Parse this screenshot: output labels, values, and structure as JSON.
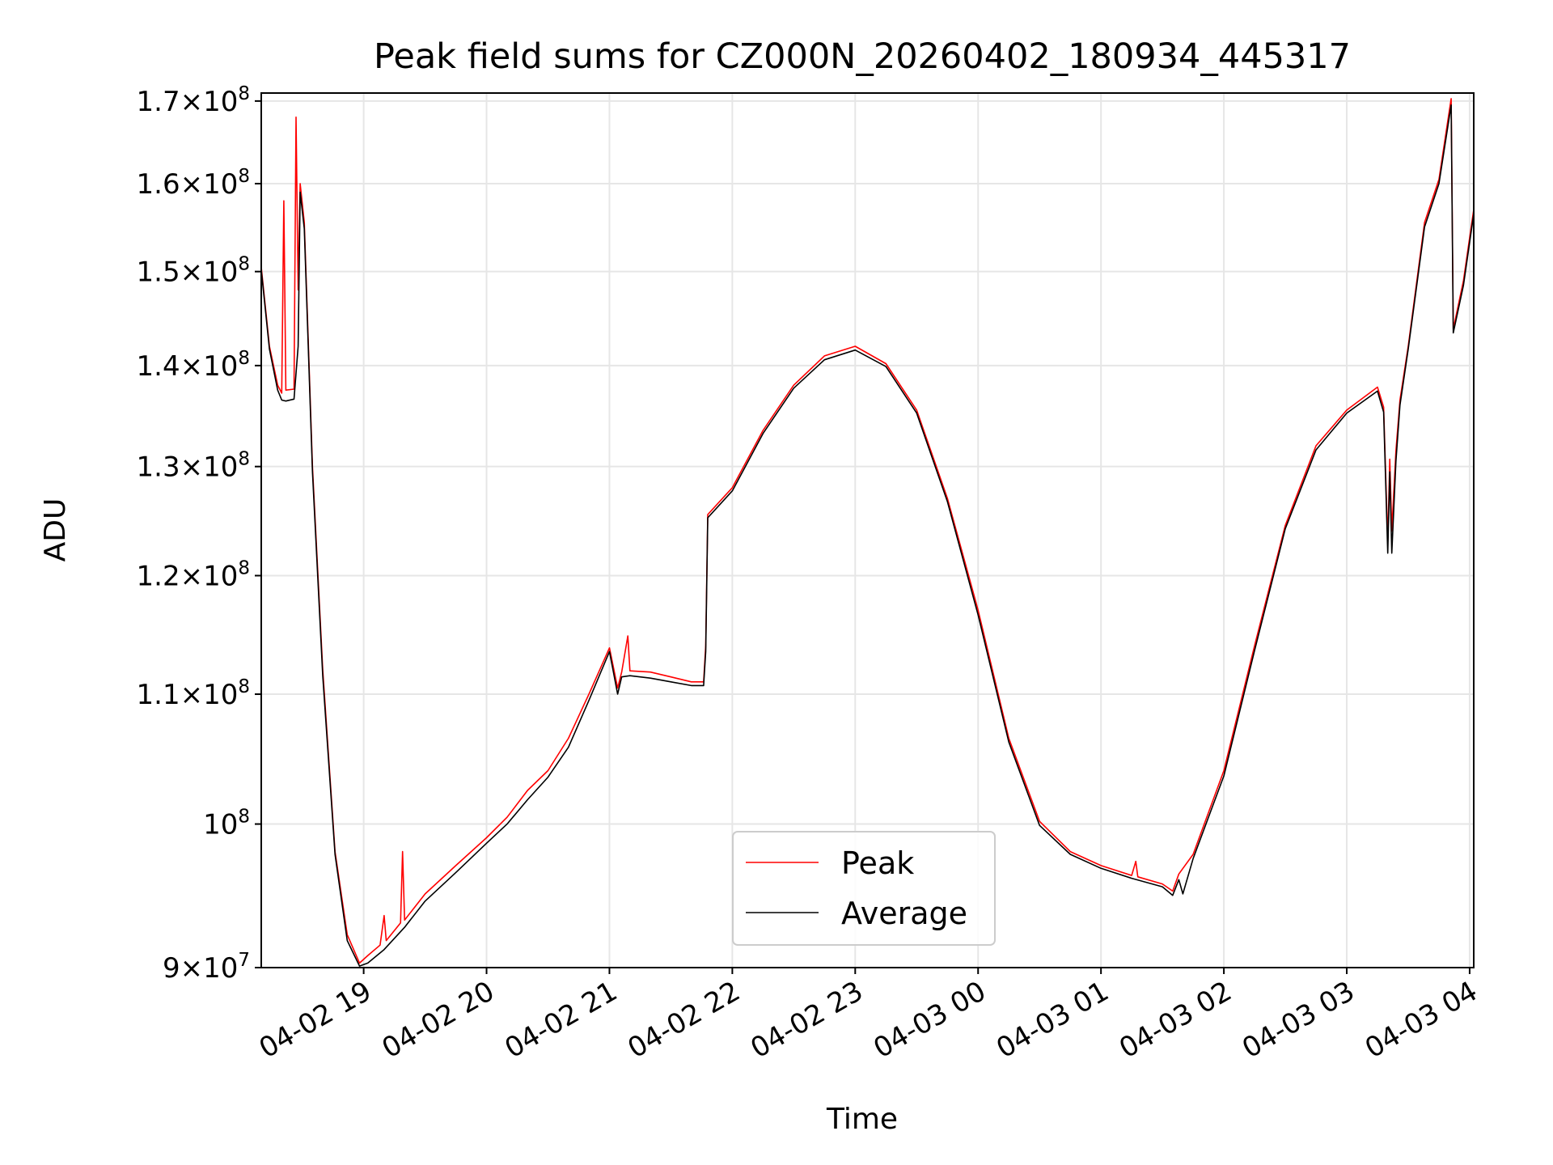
{
  "chart_data": {
    "type": "line",
    "title": "Peak field sums for CZ000N_20260402_180934_445317",
    "xlabel": "Time",
    "ylabel": "ADU",
    "yscale": "log",
    "ylim": [
      90000000,
      171000000
    ],
    "xlim": [
      "2026-04-02 18:10",
      "2026-04-03 04:02"
    ],
    "grid": true,
    "legend_position": "lower-center",
    "x_ticks": [
      {
        "t": "2026-04-02 19:00",
        "label": "04-02 19"
      },
      {
        "t": "2026-04-02 20:00",
        "label": "04-02 20"
      },
      {
        "t": "2026-04-02 21:00",
        "label": "04-02 21"
      },
      {
        "t": "2026-04-02 22:00",
        "label": "04-02 22"
      },
      {
        "t": "2026-04-02 23:00",
        "label": "04-02 23"
      },
      {
        "t": "2026-04-03 00:00",
        "label": "04-03 00"
      },
      {
        "t": "2026-04-03 01:00",
        "label": "04-03 01"
      },
      {
        "t": "2026-04-03 02:00",
        "label": "04-03 02"
      },
      {
        "t": "2026-04-03 03:00",
        "label": "04-03 03"
      },
      {
        "t": "2026-04-03 04:00",
        "label": "04-03 04"
      }
    ],
    "y_ticks": [
      {
        "v": 90000000,
        "mant": "9",
        "exp": "7",
        "sci": true
      },
      {
        "v": 100000000,
        "mant": "",
        "exp": "8",
        "sci": false
      },
      {
        "v": 110000000,
        "mant": "1.1",
        "exp": "8",
        "sci": true
      },
      {
        "v": 120000000,
        "mant": "1.2",
        "exp": "8",
        "sci": true
      },
      {
        "v": 130000000,
        "mant": "1.3",
        "exp": "8",
        "sci": true
      },
      {
        "v": 140000000,
        "mant": "1.4",
        "exp": "8",
        "sci": true
      },
      {
        "v": 150000000,
        "mant": "1.5",
        "exp": "8",
        "sci": true
      },
      {
        "v": 160000000,
        "mant": "1.6",
        "exp": "8",
        "sci": true
      },
      {
        "v": 170000000,
        "mant": "1.7",
        "exp": "8",
        "sci": true
      }
    ],
    "series": [
      {
        "name": "Peak",
        "color": "#ff0000",
        "points": [
          [
            "2026-04-02 18:10",
            150500000
          ],
          [
            "2026-04-02 18:14",
            142000000
          ],
          [
            "2026-04-02 18:18",
            138000000
          ],
          [
            "2026-04-02 18:20",
            137200000
          ],
          [
            "2026-04-02 18:21",
            158000000
          ],
          [
            "2026-04-02 18:22",
            137500000
          ],
          [
            "2026-04-02 18:26",
            137600000
          ],
          [
            "2026-04-02 18:27",
            168000000
          ],
          [
            "2026-04-02 18:28",
            148000000
          ],
          [
            "2026-04-02 18:29",
            160000000
          ],
          [
            "2026-04-02 18:31",
            155500000
          ],
          [
            "2026-04-02 18:35",
            130000000
          ],
          [
            "2026-04-02 18:40",
            112000000
          ],
          [
            "2026-04-02 18:46",
            98000000
          ],
          [
            "2026-04-02 18:52",
            92200000
          ],
          [
            "2026-04-02 18:58",
            90300000
          ],
          [
            "2026-04-02 19:02",
            90800000
          ],
          [
            "2026-04-02 19:08",
            91500000
          ],
          [
            "2026-04-02 19:10",
            93500000
          ],
          [
            "2026-04-02 19:11",
            91800000
          ],
          [
            "2026-04-02 19:18",
            93000000
          ],
          [
            "2026-04-02 19:19",
            98000000
          ],
          [
            "2026-04-02 19:20",
            93200000
          ],
          [
            "2026-04-02 19:30",
            95000000
          ],
          [
            "2026-04-02 19:45",
            97000000
          ],
          [
            "2026-04-02 20:00",
            99000000
          ],
          [
            "2026-04-02 20:10",
            100500000
          ],
          [
            "2026-04-02 20:20",
            102500000
          ],
          [
            "2026-04-02 20:30",
            104000000
          ],
          [
            "2026-04-02 20:40",
            106500000
          ],
          [
            "2026-04-02 20:50",
            110000000
          ],
          [
            "2026-04-02 21:00",
            113800000
          ],
          [
            "2026-04-02 21:04",
            110500000
          ],
          [
            "2026-04-02 21:06",
            111800000
          ],
          [
            "2026-04-02 21:09",
            114800000
          ],
          [
            "2026-04-02 21:10",
            111900000
          ],
          [
            "2026-04-02 21:20",
            111800000
          ],
          [
            "2026-04-02 21:30",
            111400000
          ],
          [
            "2026-04-02 21:40",
            111000000
          ],
          [
            "2026-04-02 21:46",
            111000000
          ],
          [
            "2026-04-02 21:47",
            114000000
          ],
          [
            "2026-04-02 21:48",
            125500000
          ],
          [
            "2026-04-02 22:00",
            128000000
          ],
          [
            "2026-04-02 22:15",
            133500000
          ],
          [
            "2026-04-02 22:30",
            138000000
          ],
          [
            "2026-04-02 22:45",
            141000000
          ],
          [
            "2026-04-02 23:00",
            142000000
          ],
          [
            "2026-04-02 23:15",
            140200000
          ],
          [
            "2026-04-02 23:30",
            135500000
          ],
          [
            "2026-04-02 23:45",
            127000000
          ],
          [
            "2026-04-03 00:00",
            117000000
          ],
          [
            "2026-04-03 00:15",
            106500000
          ],
          [
            "2026-04-03 00:30",
            100200000
          ],
          [
            "2026-04-03 00:45",
            98000000
          ],
          [
            "2026-04-03 01:00",
            97000000
          ],
          [
            "2026-04-03 01:15",
            96300000
          ],
          [
            "2026-04-03 01:17",
            97300000
          ],
          [
            "2026-04-03 01:18",
            96200000
          ],
          [
            "2026-04-03 01:30",
            95700000
          ],
          [
            "2026-04-03 01:35",
            95200000
          ],
          [
            "2026-04-03 01:38",
            96400000
          ],
          [
            "2026-04-03 01:45",
            97800000
          ],
          [
            "2026-04-03 02:00",
            104000000
          ],
          [
            "2026-04-03 02:15",
            114000000
          ],
          [
            "2026-04-03 02:30",
            124500000
          ],
          [
            "2026-04-03 02:45",
            132000000
          ],
          [
            "2026-04-03 03:00",
            135500000
          ],
          [
            "2026-04-03 03:15",
            137800000
          ],
          [
            "2026-04-03 03:18",
            135800000
          ],
          [
            "2026-04-03 03:20",
            123000000
          ],
          [
            "2026-04-03 03:21",
            130700000
          ],
          [
            "2026-04-03 03:22",
            124000000
          ],
          [
            "2026-04-03 03:24",
            131500000
          ],
          [
            "2026-04-03 03:26",
            136500000
          ],
          [
            "2026-04-03 03:30",
            142000000
          ],
          [
            "2026-04-03 03:38",
            155500000
          ],
          [
            "2026-04-03 03:45",
            160500000
          ],
          [
            "2026-04-03 03:51",
            170300000
          ],
          [
            "2026-04-03 03:52",
            143800000
          ],
          [
            "2026-04-03 03:57",
            149000000
          ],
          [
            "2026-04-03 04:02",
            157000000
          ]
        ]
      },
      {
        "name": "Average",
        "color": "#000000",
        "points": [
          [
            "2026-04-02 18:10",
            150200000
          ],
          [
            "2026-04-02 18:14",
            141700000
          ],
          [
            "2026-04-02 18:18",
            137500000
          ],
          [
            "2026-04-02 18:20",
            136500000
          ],
          [
            "2026-04-02 18:22",
            136400000
          ],
          [
            "2026-04-02 18:26",
            136600000
          ],
          [
            "2026-04-02 18:28",
            142000000
          ],
          [
            "2026-04-02 18:29",
            159000000
          ],
          [
            "2026-04-02 18:31",
            154800000
          ],
          [
            "2026-04-02 18:35",
            129500000
          ],
          [
            "2026-04-02 18:40",
            111500000
          ],
          [
            "2026-04-02 18:46",
            97800000
          ],
          [
            "2026-04-02 18:52",
            91800000
          ],
          [
            "2026-04-02 18:58",
            90100000
          ],
          [
            "2026-04-02 19:02",
            90300000
          ],
          [
            "2026-04-02 19:10",
            91200000
          ],
          [
            "2026-04-02 19:20",
            92700000
          ],
          [
            "2026-04-02 19:30",
            94500000
          ],
          [
            "2026-04-02 19:45",
            96500000
          ],
          [
            "2026-04-02 20:00",
            98600000
          ],
          [
            "2026-04-02 20:10",
            100000000
          ],
          [
            "2026-04-02 20:20",
            101800000
          ],
          [
            "2026-04-02 20:30",
            103500000
          ],
          [
            "2026-04-02 20:40",
            105800000
          ],
          [
            "2026-04-02 20:50",
            109500000
          ],
          [
            "2026-04-02 21:00",
            113500000
          ],
          [
            "2026-04-02 21:04",
            110000000
          ],
          [
            "2026-04-02 21:06",
            111400000
          ],
          [
            "2026-04-02 21:10",
            111500000
          ],
          [
            "2026-04-02 21:20",
            111300000
          ],
          [
            "2026-04-02 21:30",
            111000000
          ],
          [
            "2026-04-02 21:40",
            110700000
          ],
          [
            "2026-04-02 21:46",
            110700000
          ],
          [
            "2026-04-02 21:47",
            113500000
          ],
          [
            "2026-04-02 21:48",
            125200000
          ],
          [
            "2026-04-02 22:00",
            127700000
          ],
          [
            "2026-04-02 22:15",
            133200000
          ],
          [
            "2026-04-02 22:30",
            137700000
          ],
          [
            "2026-04-02 22:45",
            140600000
          ],
          [
            "2026-04-02 23:00",
            141600000
          ],
          [
            "2026-04-02 23:15",
            139900000
          ],
          [
            "2026-04-02 23:30",
            135200000
          ],
          [
            "2026-04-02 23:45",
            126700000
          ],
          [
            "2026-04-03 00:00",
            116600000
          ],
          [
            "2026-04-03 00:15",
            106200000
          ],
          [
            "2026-04-03 00:30",
            99900000
          ],
          [
            "2026-04-03 00:45",
            97800000
          ],
          [
            "2026-04-03 01:00",
            96800000
          ],
          [
            "2026-04-03 01:15",
            96100000
          ],
          [
            "2026-04-03 01:30",
            95500000
          ],
          [
            "2026-04-03 01:35",
            94900000
          ],
          [
            "2026-04-03 01:38",
            96000000
          ],
          [
            "2026-04-03 01:40",
            95000000
          ],
          [
            "2026-04-03 01:45",
            97500000
          ],
          [
            "2026-04-03 02:00",
            103600000
          ],
          [
            "2026-04-03 02:15",
            113600000
          ],
          [
            "2026-04-03 02:30",
            124200000
          ],
          [
            "2026-04-03 02:45",
            131600000
          ],
          [
            "2026-04-03 03:00",
            135200000
          ],
          [
            "2026-04-03 03:15",
            137400000
          ],
          [
            "2026-04-03 03:18",
            135300000
          ],
          [
            "2026-04-03 03:20",
            122000000
          ],
          [
            "2026-04-03 03:21",
            129500000
          ],
          [
            "2026-04-03 03:22",
            122000000
          ],
          [
            "2026-04-03 03:24",
            130500000
          ],
          [
            "2026-04-03 03:26",
            136000000
          ],
          [
            "2026-04-03 03:30",
            141700000
          ],
          [
            "2026-04-03 03:38",
            155000000
          ],
          [
            "2026-04-03 03:45",
            160000000
          ],
          [
            "2026-04-03 03:51",
            169500000
          ],
          [
            "2026-04-03 03:52",
            143400000
          ],
          [
            "2026-04-03 03:57",
            148500000
          ],
          [
            "2026-04-03 04:02",
            156500000
          ]
        ]
      }
    ]
  }
}
